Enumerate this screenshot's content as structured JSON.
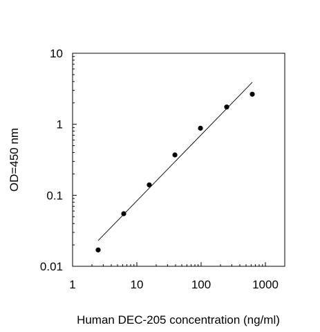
{
  "chart_data": {
    "type": "scatter",
    "title": "",
    "xlabel": "Human DEC-205 concentration (ng/ml)",
    "ylabel": "OD=450 nm",
    "x_scale": "log",
    "y_scale": "log",
    "xlim": [
      1,
      2000
    ],
    "ylim": [
      0.01,
      10
    ],
    "x_ticks": [
      {
        "value": 1,
        "label": "1"
      },
      {
        "value": 10,
        "label": "10"
      },
      {
        "value": 100,
        "label": "100"
      },
      {
        "value": 1000,
        "label": "1000"
      }
    ],
    "y_ticks": [
      {
        "value": 0.01,
        "label": "0.01"
      },
      {
        "value": 0.1,
        "label": "0.1"
      },
      {
        "value": 1,
        "label": "1"
      },
      {
        "value": 10,
        "label": "10"
      }
    ],
    "grid": false,
    "legend": "none",
    "series": [
      {
        "points": [
          {
            "x": 2.5,
            "y": 0.017
          },
          {
            "x": 6.25,
            "y": 0.055
          },
          {
            "x": 15.6,
            "y": 0.14
          },
          {
            "x": 39.1,
            "y": 0.37
          },
          {
            "x": 97.7,
            "y": 0.88
          },
          {
            "x": 250,
            "y": 1.75
          },
          {
            "x": 625,
            "y": 2.65
          }
        ]
      }
    ],
    "fit_line": {
      "x": [
        2.5,
        625
      ],
      "y": [
        0.023,
        3.9
      ]
    },
    "colors": {
      "points": "#000000",
      "line": "#000000",
      "axes": "#000000"
    }
  }
}
